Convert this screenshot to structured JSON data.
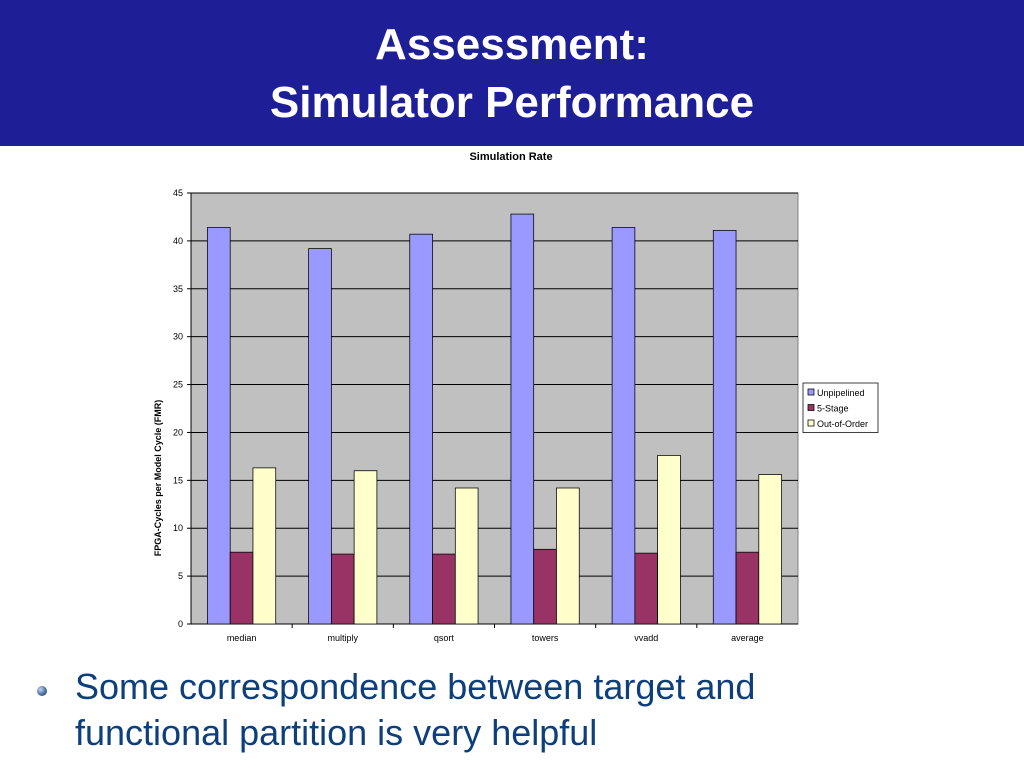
{
  "slide": {
    "title_line1": "Assessment:",
    "title_line2": "Simulator Performance",
    "bullet_line1": "Some correspondence between target and",
    "bullet_line2": "functional partition is very helpful"
  },
  "colors": {
    "title_bar": "#1e1f96",
    "plot_bg": "#c0c0c0",
    "bullet_text": "#0d3f7c"
  },
  "chart_data": {
    "type": "bar",
    "title": "Simulation Rate",
    "xlabel": "",
    "ylabel": "FPGA-Cycles per Model Cycle (FMR)",
    "categories": [
      "median",
      "multiply",
      "qsort",
      "towers",
      "vvadd",
      "average"
    ],
    "series": [
      {
        "name": "Unpipelined",
        "color": "#9999ff",
        "values": [
          41.4,
          39.2,
          40.7,
          42.8,
          41.4,
          41.1
        ]
      },
      {
        "name": "5-Stage",
        "color": "#993366",
        "values": [
          7.5,
          7.3,
          7.3,
          7.8,
          7.4,
          7.5
        ]
      },
      {
        "name": "Out-of-Order",
        "color": "#ffffcc",
        "values": [
          16.3,
          16.0,
          14.2,
          14.2,
          17.6,
          15.6
        ]
      }
    ],
    "ylim": [
      0,
      45
    ],
    "yticks": [
      0,
      5,
      10,
      15,
      20,
      25,
      30,
      35,
      40,
      45
    ],
    "grid": true,
    "legend_position": "right"
  }
}
